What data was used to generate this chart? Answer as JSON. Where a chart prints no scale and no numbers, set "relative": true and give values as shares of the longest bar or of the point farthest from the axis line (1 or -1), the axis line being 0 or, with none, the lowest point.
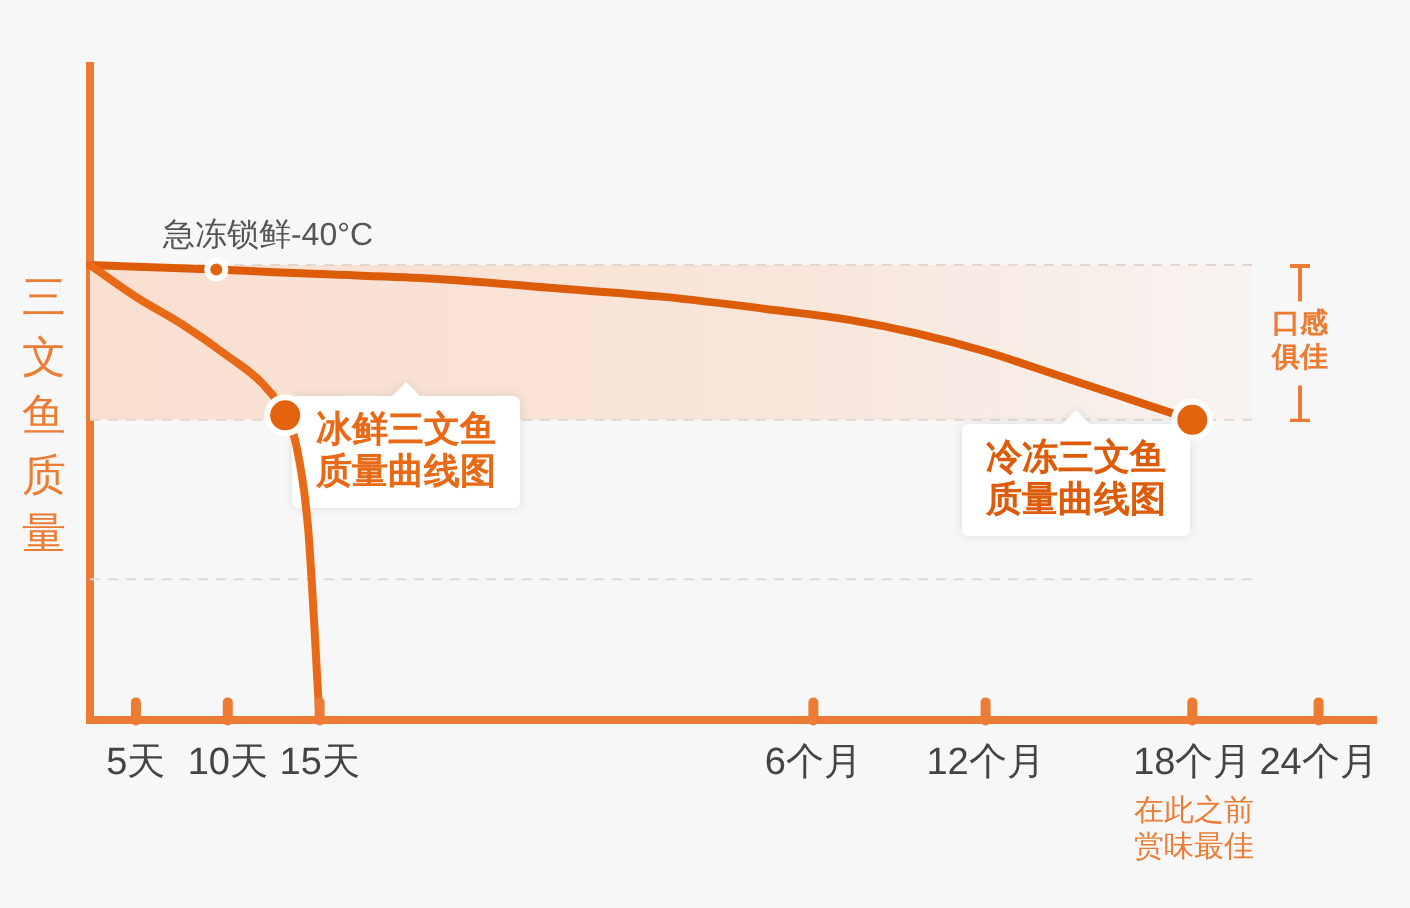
{
  "chart_data": {
    "type": "line",
    "ylabel": "三文鱼质量",
    "relative": true,
    "legend": false,
    "marker": "none",
    "categories": [
      null,
      null,
      null,
      null,
      "5天",
      null,
      null,
      null,
      null,
      null,
      null,
      null,
      "10天",
      null,
      null,
      null,
      null,
      null,
      null,
      null,
      "15天",
      null,
      null,
      null,
      null,
      null,
      null,
      null,
      null,
      null,
      null,
      null,
      null,
      null,
      null,
      null,
      null,
      null,
      null,
      null,
      null,
      null,
      null,
      null,
      null,
      null,
      null,
      null,
      null,
      null,
      null,
      null,
      null,
      null,
      null,
      null,
      null,
      null,
      null,
      null,
      null,
      null,
      null,
      "6个月",
      null,
      null,
      null,
      null,
      null,
      null,
      null,
      null,
      null,
      null,
      null,
      null,
      null,
      null,
      "12个月",
      null,
      null,
      null,
      null,
      null,
      null,
      null,
      null,
      null,
      null,
      null,
      null,
      null,
      null,
      null,
      null,
      null,
      "18个月",
      null,
      null,
      null,
      null,
      null,
      null,
      null,
      null,
      null,
      null,
      "24个月",
      null,
      null,
      null,
      null,
      null
    ],
    "series": [
      {
        "name": "冰鲜三文鱼质量曲线图",
        "type": "line",
        "color": "#e96a16",
        "values": [
          1,
          null,
          null,
          null,
          0.93,
          null,
          null,
          null,
          0.87,
          null,
          null,
          null,
          0.8,
          null,
          null,
          0.74,
          null,
          0.67,
          0.6,
          0.42,
          0,
          null,
          null,
          null,
          null,
          null,
          null,
          null,
          null,
          null,
          null,
          null,
          null,
          null,
          null,
          null,
          null,
          null,
          null,
          null,
          null,
          null,
          null,
          null,
          null,
          null,
          null,
          null,
          null,
          null,
          null,
          null,
          null,
          null,
          null,
          null,
          null,
          null,
          null,
          null,
          null,
          null,
          null,
          null,
          null,
          null,
          null,
          null,
          null,
          null,
          null,
          null,
          null,
          null,
          null,
          null,
          null,
          null,
          null,
          null,
          null,
          null,
          null,
          null,
          null,
          null,
          null,
          null,
          null,
          null,
          null,
          null,
          null,
          null,
          null,
          null,
          null,
          null,
          null,
          null,
          null,
          null,
          null,
          null,
          null,
          null,
          null,
          null,
          null,
          null,
          null,
          null,
          null
        ]
      },
      {
        "name": "冷冻三文鱼质量曲线图",
        "type": "line",
        "color": "#dd5c0a",
        "values": [
          1,
          null,
          null,
          null,
          null,
          null,
          null,
          null,
          null,
          null,
          null,
          0.99,
          null,
          null,
          null,
          null,
          null,
          null,
          null,
          null,
          0.98,
          null,
          null,
          null,
          null,
          null,
          null,
          null,
          null,
          null,
          0.97,
          null,
          null,
          null,
          null,
          null,
          null,
          null,
          null,
          null,
          0.95,
          null,
          null,
          null,
          null,
          null,
          null,
          null,
          null,
          null,
          0.93,
          null,
          null,
          null,
          null,
          null,
          null,
          null,
          null,
          null,
          0.9,
          null,
          null,
          null,
          null,
          null,
          0.88,
          null,
          null,
          null,
          null,
          null,
          0.85,
          null,
          null,
          null,
          null,
          null,
          0.81,
          null,
          null,
          null,
          null,
          null,
          0.76,
          null,
          null,
          null,
          null,
          null,
          0.71,
          null,
          null,
          null,
          null,
          null,
          0.66,
          null,
          null,
          null,
          null,
          null,
          null,
          null,
          null,
          null,
          null,
          null,
          null,
          null,
          null,
          null,
          null
        ]
      },
      {
        "type": "scatter",
        "marker": "circle",
        "color": "#e3620e",
        "values": [
          null,
          null,
          null,
          null,
          null,
          null,
          null,
          null,
          null,
          null,
          null,
          null,
          null,
          null,
          null,
          null,
          null,
          0.67,
          null,
          null,
          null,
          null,
          null,
          null,
          null,
          null,
          null,
          null,
          null,
          null,
          null,
          null,
          null,
          null,
          null,
          null,
          null,
          null,
          null,
          null,
          null,
          null,
          null,
          null,
          null,
          null,
          null,
          null,
          null,
          null,
          null,
          null,
          null,
          null,
          null,
          null,
          null,
          null,
          null,
          null,
          null,
          null,
          null,
          null,
          null,
          null,
          null,
          null,
          null,
          null,
          null,
          null,
          null,
          null,
          null,
          null,
          null,
          null,
          null,
          null,
          null,
          null,
          null,
          null,
          null,
          null,
          null,
          null,
          null,
          null,
          null,
          null,
          null,
          null,
          null,
          null,
          0.66,
          null,
          null,
          null,
          null,
          null,
          null,
          null,
          null,
          null,
          null,
          null,
          null,
          null,
          null,
          null,
          null
        ]
      },
      {
        "type": "scatter",
        "marker": "circle",
        "color": "#e3620e",
        "values": [
          null,
          null,
          null,
          null,
          null,
          null,
          null,
          null,
          null,
          null,
          null,
          0.99,
          null,
          null,
          null,
          null,
          null,
          null,
          null,
          null,
          null,
          null,
          null,
          null,
          null,
          null,
          null,
          null,
          null,
          null,
          null,
          null,
          null,
          null,
          null,
          null,
          null,
          null,
          null,
          null,
          null,
          null,
          null,
          null,
          null,
          null,
          null,
          null,
          null,
          null,
          null,
          null,
          null,
          null,
          null,
          null,
          null,
          null,
          null,
          null,
          null,
          null,
          null,
          null,
          null,
          null,
          null,
          null,
          null,
          null,
          null,
          null,
          null,
          null,
          null,
          null,
          null,
          null,
          null,
          null,
          null,
          null,
          null,
          null,
          null,
          null,
          null,
          null,
          null,
          null,
          null,
          null,
          null,
          null,
          null,
          null,
          null,
          null,
          null,
          null,
          null,
          null,
          null,
          null,
          null,
          null,
          null,
          null,
          null,
          null,
          null,
          null,
          null
        ]
      }
    ],
    "bands": [
      {
        "axis": "y",
        "from": 0.66,
        "to": 1,
        "label": "口感俱佳",
        "color": "#f9dfd0"
      }
    ],
    "ref_lines": [
      {
        "axis": "y",
        "value": 1,
        "color": "#e4d6cd",
        "line_style": "dashed"
      },
      {
        "axis": "y",
        "value": 0.66,
        "color": "#e4d6cd",
        "line_style": "dashed"
      },
      {
        "axis": "y",
        "value": 0.31,
        "color": "#dcdcdc",
        "line_style": "dashed"
      }
    ],
    "annotations": [
      "急冻锁鲜-40°C",
      "在此之前赏味最佳"
    ]
  }
}
